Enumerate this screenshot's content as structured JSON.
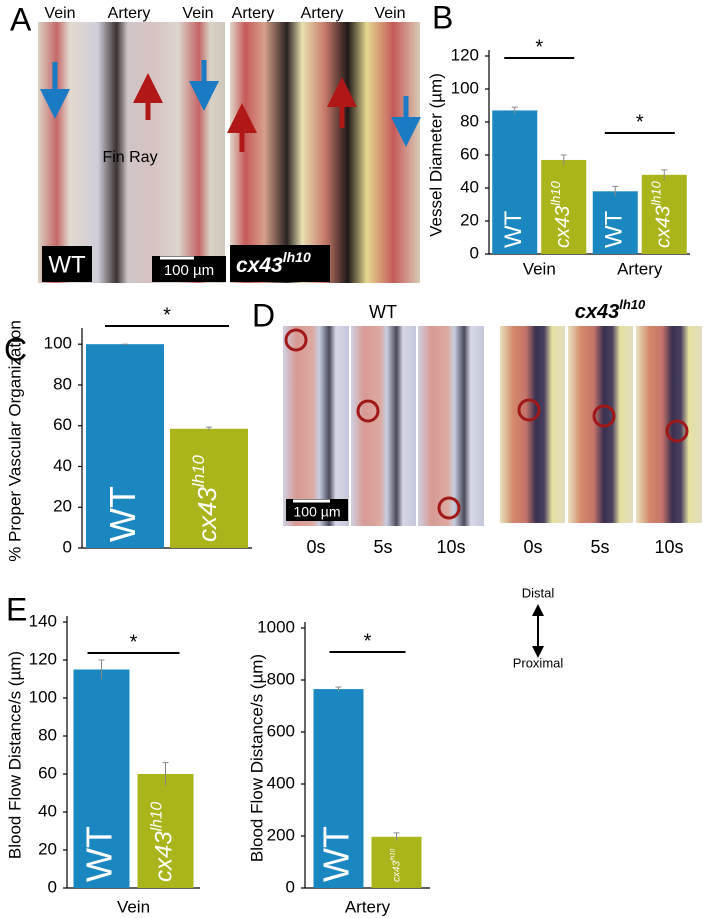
{
  "figure": {
    "panel_labels": [
      "A",
      "B",
      "C",
      "D",
      "E"
    ],
    "panel_a": {
      "vessel_labels": [
        "Vein",
        "Artery",
        "Vein",
        "Artery",
        "Artery",
        "Vein"
      ],
      "fin_ray": "Fin Ray",
      "wild_type": "WT",
      "scale_bar": "100 µm",
      "mutant": "cx43",
      "mutant_superscript": "lh10"
    },
    "panel_d": {
      "wild_type": "WT",
      "mutant": "cx43",
      "mutant_superscript": "lh10",
      "scale_bar": "100 µm",
      "times": [
        "0s",
        "5s",
        "10s",
        "0s",
        "5s",
        "10s"
      ]
    },
    "orientation": {
      "top": "Distal",
      "bottom": "Proximal"
    }
  },
  "chart_data": [
    {
      "type": "bar",
      "y_label": "Vessel Diameter (µm)",
      "categories": [
        "Vein",
        "Artery"
      ],
      "series": [
        {
          "name": "WT",
          "color": "#1a87c1",
          "values": [
            87,
            38
          ],
          "errors": [
            2,
            3
          ]
        },
        {
          "name": "cx43",
          "name_superscript": "lh10",
          "color": "#a9b51a",
          "values": [
            57,
            48
          ],
          "errors": [
            3,
            3
          ]
        }
      ],
      "significance": [
        "*",
        "*"
      ],
      "ylim": [
        0,
        120
      ],
      "yticks": [
        0,
        20,
        40,
        60,
        80,
        100,
        120
      ]
    },
    {
      "type": "bar",
      "y_label": "% Proper Vascular Organization",
      "categories": [
        null
      ],
      "series": [
        {
          "name": "WT",
          "color": "#1a87c1",
          "values": [
            100
          ],
          "errors": [
            0
          ]
        },
        {
          "name": "cx43",
          "name_superscript": "lh10",
          "color": "#a9b51a",
          "values": [
            58.5
          ],
          "errors": [
            0.8
          ]
        }
      ],
      "significance": [
        "*"
      ],
      "ylim": [
        0,
        105
      ],
      "yticks": [
        0,
        20,
        40,
        60,
        80,
        100
      ]
    },
    {
      "type": "bar",
      "y_label": "Blood Flow Distance/s (µm)",
      "categories": [
        "Vein"
      ],
      "series": [
        {
          "name": "WT",
          "color": "#1a87c1",
          "values": [
            115
          ],
          "errors": [
            5
          ]
        },
        {
          "name": "cx43",
          "name_superscript": "lh10",
          "color": "#a9b51a",
          "values": [
            60
          ],
          "errors": [
            6
          ]
        }
      ],
      "significance": [
        "*"
      ],
      "ylim": [
        0,
        140
      ],
      "yticks": [
        0,
        20,
        40,
        60,
        80,
        100,
        120,
        140
      ]
    },
    {
      "type": "bar",
      "y_label": "Blood Flow Distance/s (µm)",
      "categories": [
        "Artery"
      ],
      "series": [
        {
          "name": "WT",
          "color": "#1a87c1",
          "values": [
            765
          ],
          "errors": [
            8
          ]
        },
        {
          "name": "cx43",
          "name_superscript": "lh10",
          "color": "#a9b51a",
          "values": [
            197
          ],
          "errors": [
            15
          ]
        }
      ],
      "significance": [
        "*"
      ],
      "ylim": [
        0,
        1000
      ],
      "yticks": [
        0,
        200,
        400,
        600,
        800,
        1000
      ]
    }
  ]
}
